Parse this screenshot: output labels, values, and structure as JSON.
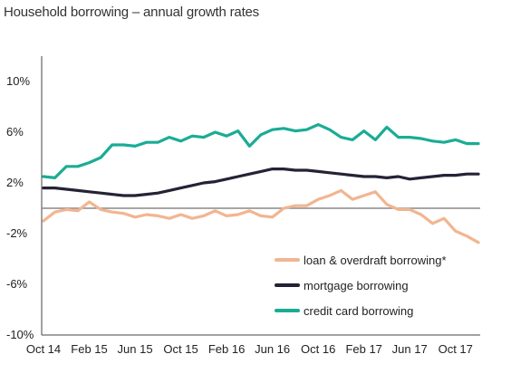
{
  "chart_data": {
    "type": "line",
    "title": "Household borrowing – annual growth rates",
    "xlabel": "",
    "ylabel": "",
    "ylim": [
      -10,
      12
    ],
    "y_ticks": [
      10,
      6,
      2,
      -2,
      -6,
      -10
    ],
    "y_tick_labels": [
      "10%",
      "6%",
      "2%",
      "-2%",
      "-6%",
      "-10%"
    ],
    "x_tick_labels": [
      "Oct 14",
      "Feb 15",
      "Jun 15",
      "Oct 15",
      "Feb 16",
      "Jun 16",
      "Oct 16",
      "Feb 17",
      "Jun 17",
      "Oct 17"
    ],
    "x_tick_positions": [
      0,
      4,
      8,
      12,
      16,
      20,
      24,
      28,
      32,
      36
    ],
    "zero_line": 0,
    "legend_position": "bottom-right",
    "series": [
      {
        "name": "loan & overdraft borrowing*",
        "color": "#f2b591",
        "values": [
          -1.0,
          -0.3,
          -0.1,
          -0.2,
          0.5,
          -0.1,
          -0.3,
          -0.4,
          -0.7,
          -0.5,
          -0.6,
          -0.8,
          -0.5,
          -0.8,
          -0.6,
          -0.2,
          -0.6,
          -0.5,
          -0.2,
          -0.6,
          -0.7,
          0.0,
          0.2,
          0.2,
          0.7,
          1.0,
          1.4,
          0.7,
          1.0,
          1.3,
          0.3,
          -0.1,
          -0.1,
          -0.5,
          -1.2,
          -0.8,
          -1.8,
          -2.2,
          -2.7
        ]
      },
      {
        "name": "mortgage borrowing",
        "color": "#262236",
        "values": [
          1.6,
          1.6,
          1.5,
          1.4,
          1.3,
          1.2,
          1.1,
          1.0,
          1.0,
          1.1,
          1.2,
          1.4,
          1.6,
          1.8,
          2.0,
          2.1,
          2.3,
          2.5,
          2.7,
          2.9,
          3.1,
          3.1,
          3.0,
          3.0,
          2.9,
          2.8,
          2.7,
          2.6,
          2.5,
          2.5,
          2.4,
          2.5,
          2.3,
          2.4,
          2.5,
          2.6,
          2.6,
          2.7,
          2.7
        ]
      },
      {
        "name": "credit card borrowing",
        "color": "#1aac95",
        "values": [
          2.5,
          2.4,
          3.3,
          3.3,
          3.6,
          4.0,
          5.0,
          5.0,
          4.9,
          5.2,
          5.2,
          5.6,
          5.3,
          5.7,
          5.6,
          6.0,
          5.7,
          6.1,
          4.9,
          5.8,
          6.2,
          6.3,
          6.1,
          6.2,
          6.6,
          6.2,
          5.6,
          5.4,
          6.1,
          5.4,
          6.4,
          5.6,
          5.6,
          5.5,
          5.3,
          5.2,
          5.4,
          5.1,
          5.1
        ]
      }
    ]
  }
}
